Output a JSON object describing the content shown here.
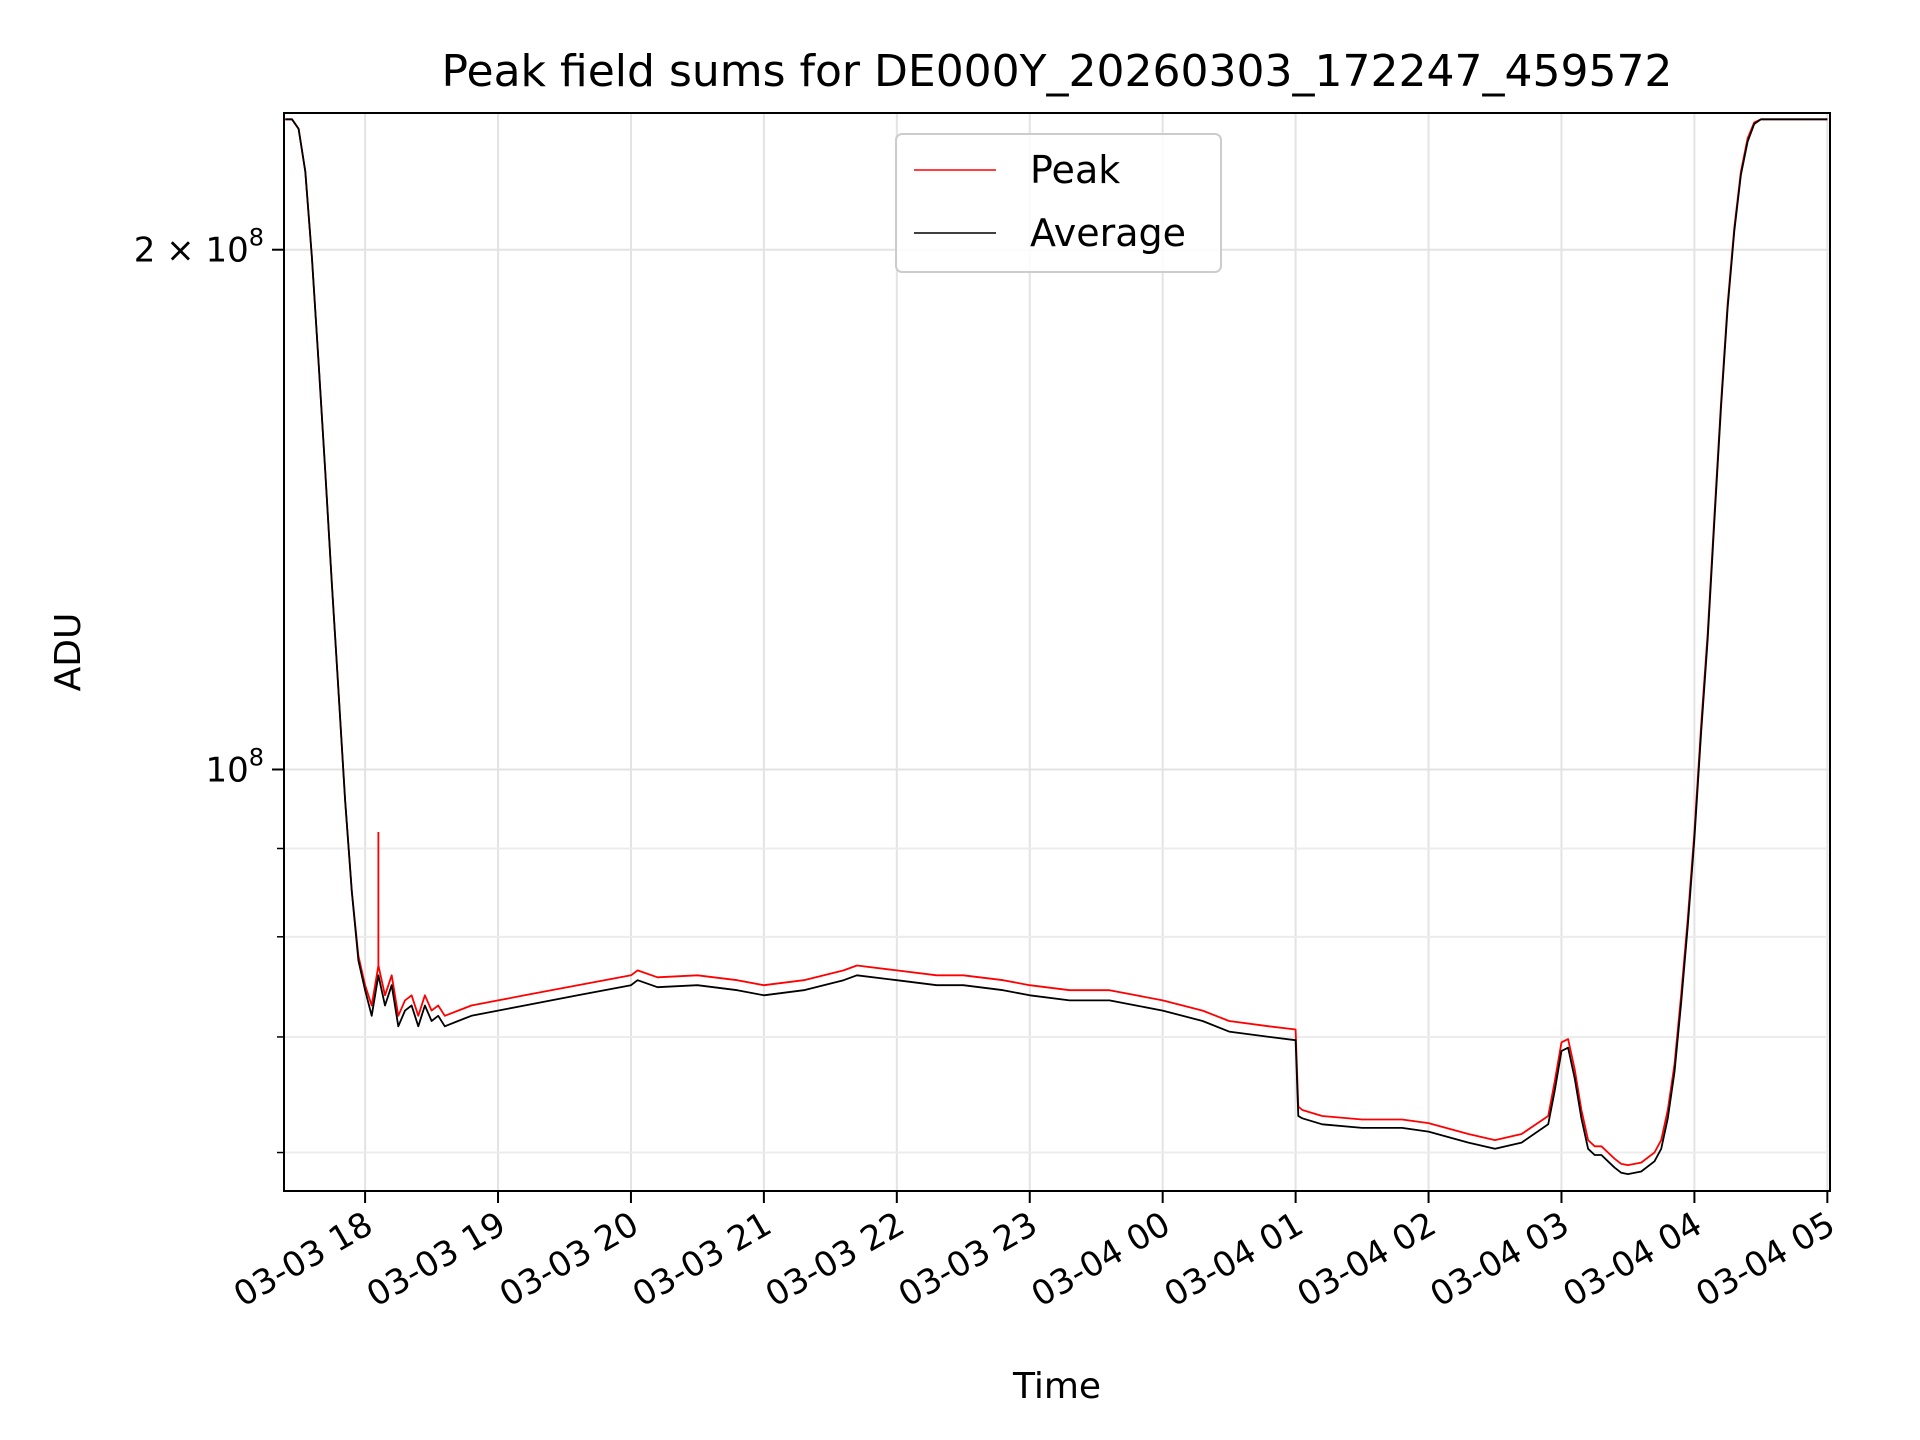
{
  "chart_data": {
    "type": "line",
    "title": "Peak field sums for DE000Y_20260303_172247_459572",
    "xlabel": "Time",
    "ylabel": "ADU",
    "y_scale": "log",
    "grid": true,
    "legend_placement": "upper center",
    "x_tick_labels": [
      "03-03 18",
      "03-03 19",
      "03-03 20",
      "03-03 21",
      "03-03 22",
      "03-03 23",
      "03-04 00",
      "03-04 01",
      "03-04 02",
      "03-04 03",
      "03-04 04",
      "03-04 05"
    ],
    "x_ticks_hours": [
      18,
      19,
      20,
      21,
      22,
      23,
      24,
      25,
      26,
      27,
      28,
      29
    ],
    "xlim_hours": [
      17.39,
      29.02
    ],
    "ylim": [
      57000000,
      240000000
    ],
    "y_major_ticks": [
      {
        "value": 100000000,
        "base": "10",
        "exp": "8"
      },
      {
        "value": 200000000,
        "base": "2 × 10",
        "exp": "8"
      }
    ],
    "y_minor_ticks": [
      60000000,
      70000000,
      80000000,
      90000000
    ],
    "series": [
      {
        "name": "Peak",
        "color": "#ff0000",
        "x_hours": [
          17.4,
          17.45,
          17.5,
          17.55,
          17.6,
          17.65,
          17.7,
          17.75,
          17.8,
          17.85,
          17.9,
          17.95,
          18.0,
          18.05,
          18.1,
          18.15,
          18.2,
          18.25,
          18.3,
          18.35,
          18.4,
          18.45,
          18.5,
          18.55,
          18.6,
          18.7,
          18.8,
          19.0,
          19.2,
          19.4,
          19.6,
          19.8,
          20.0,
          20.05,
          20.2,
          20.5,
          20.8,
          21.0,
          21.3,
          21.6,
          21.7,
          22.0,
          22.3,
          22.5,
          22.8,
          23.0,
          23.3,
          23.6,
          23.8,
          24.0,
          24.3,
          24.5,
          24.8,
          25.0,
          25.02,
          25.05,
          25.2,
          25.5,
          25.8,
          26.0,
          26.3,
          26.5,
          26.7,
          26.9,
          26.95,
          27.0,
          27.05,
          27.1,
          27.15,
          27.2,
          27.25,
          27.3,
          27.35,
          27.4,
          27.45,
          27.5,
          27.6,
          27.7,
          27.75,
          27.8,
          27.85,
          27.9,
          27.95,
          28.0,
          28.05,
          28.1,
          28.15,
          28.2,
          28.25,
          28.3,
          28.35,
          28.4,
          28.45,
          28.5,
          28.55,
          28.6,
          28.65,
          28.7,
          28.75,
          28.8,
          28.85,
          28.9,
          28.95,
          29.0
        ],
        "values": [
          238000000,
          238000000,
          235000000,
          222000000,
          198000000,
          172000000,
          149000000,
          128000000,
          111000000,
          96000000,
          85000000,
          78000000,
          75000000,
          73000000,
          77000000,
          74000000,
          76000000,
          72000000,
          73500000,
          74000000,
          72000000,
          74000000,
          72500000,
          73000000,
          72000000,
          72500000,
          73000000,
          73500000,
          74000000,
          74500000,
          75000000,
          75500000,
          76000000,
          76500000,
          75800000,
          76000000,
          75500000,
          75000000,
          75500000,
          76500000,
          77000000,
          76500000,
          76000000,
          76000000,
          75500000,
          75000000,
          74500000,
          74500000,
          74000000,
          73500000,
          72500000,
          71500000,
          71000000,
          70700000,
          63800000,
          63500000,
          63000000,
          62700000,
          62700000,
          62400000,
          61500000,
          61000000,
          61500000,
          63000000,
          66000000,
          69500000,
          69800000,
          67000000,
          63500000,
          61000000,
          60500000,
          60500000,
          60000000,
          59500000,
          59100000,
          59000000,
          59200000,
          60000000,
          61000000,
          63500000,
          67500000,
          74000000,
          82000000,
          92000000,
          106000000,
          120000000,
          140000000,
          163000000,
          186000000,
          206000000,
          222000000,
          232000000,
          237000000,
          238000000,
          238000000,
          238000000,
          238000000,
          238000000,
          238000000,
          238000000,
          238000000,
          238000000,
          238000000,
          238000000
        ],
        "spikes": [
          [
            18.1,
            92000000
          ]
        ]
      },
      {
        "name": "Average",
        "color": "#000000",
        "x_hours": [
          17.4,
          17.45,
          17.5,
          17.55,
          17.6,
          17.65,
          17.7,
          17.75,
          17.8,
          17.85,
          17.9,
          17.95,
          18.0,
          18.05,
          18.1,
          18.15,
          18.2,
          18.25,
          18.3,
          18.35,
          18.4,
          18.45,
          18.5,
          18.55,
          18.6,
          18.7,
          18.8,
          19.0,
          19.2,
          19.4,
          19.6,
          19.8,
          20.0,
          20.05,
          20.2,
          20.5,
          20.8,
          21.0,
          21.3,
          21.6,
          21.7,
          22.0,
          22.3,
          22.5,
          22.8,
          23.0,
          23.3,
          23.6,
          23.8,
          24.0,
          24.3,
          24.5,
          24.8,
          25.0,
          25.02,
          25.05,
          25.2,
          25.5,
          25.8,
          26.0,
          26.3,
          26.5,
          26.7,
          26.9,
          26.95,
          27.0,
          27.05,
          27.1,
          27.15,
          27.2,
          27.25,
          27.3,
          27.35,
          27.4,
          27.45,
          27.5,
          27.6,
          27.7,
          27.75,
          27.8,
          27.85,
          27.9,
          27.95,
          28.0,
          28.05,
          28.1,
          28.15,
          28.2,
          28.25,
          28.3,
          28.35,
          28.4,
          28.45,
          28.5,
          28.55,
          28.6,
          28.65,
          28.7,
          28.75,
          28.8,
          28.85,
          28.9,
          28.95,
          29.0
        ],
        "values": [
          238000000,
          238000000,
          235000000,
          222000000,
          198000000,
          172000000,
          149000000,
          128000000,
          111000000,
          96000000,
          85000000,
          77500000,
          74500000,
          72000000,
          76000000,
          73000000,
          75000000,
          71000000,
          72500000,
          73000000,
          71000000,
          73000000,
          71500000,
          72000000,
          71000000,
          71500000,
          72000000,
          72500000,
          73000000,
          73500000,
          74000000,
          74500000,
          75000000,
          75500000,
          74800000,
          75000000,
          74500000,
          74000000,
          74500000,
          75500000,
          76000000,
          75500000,
          75000000,
          75000000,
          74500000,
          74000000,
          73500000,
          73500000,
          73000000,
          72500000,
          71500000,
          70500000,
          70000000,
          69700000,
          63000000,
          62800000,
          62300000,
          62000000,
          62000000,
          61700000,
          60800000,
          60300000,
          60800000,
          62300000,
          65200000,
          68700000,
          69000000,
          66200000,
          62800000,
          60300000,
          59800000,
          59800000,
          59300000,
          58800000,
          58400000,
          58300000,
          58500000,
          59300000,
          60300000,
          62800000,
          66800000,
          73200000,
          81200000,
          91200000,
          105000000,
          119000000,
          139000000,
          162000000,
          185000000,
          205000000,
          221000000,
          231000000,
          236500000,
          238000000,
          238000000,
          238000000,
          238000000,
          238000000,
          238000000,
          238000000,
          238000000,
          238000000,
          238000000,
          238000000
        ],
        "spikes": []
      }
    ]
  }
}
